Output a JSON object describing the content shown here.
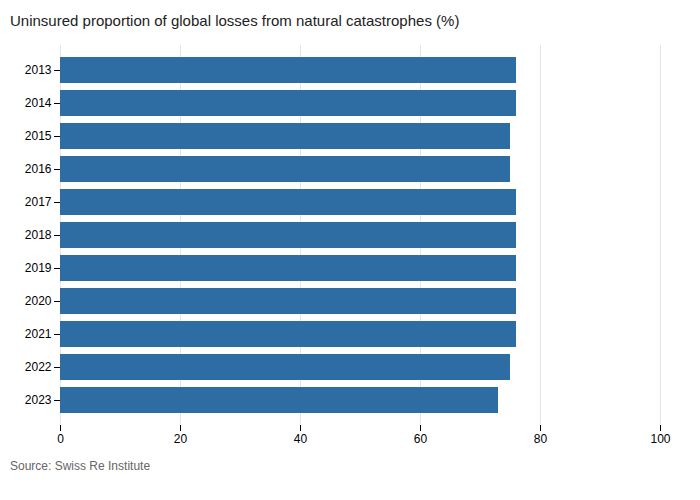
{
  "chart_data": {
    "type": "bar",
    "orientation": "horizontal",
    "title": "Uninsured proportion of global losses from natural catastrophes (%)",
    "categories": [
      "2013",
      "2014",
      "2015",
      "2016",
      "2017",
      "2018",
      "2019",
      "2020",
      "2021",
      "2022",
      "2023"
    ],
    "values": [
      76,
      76,
      75,
      75,
      76,
      76,
      76,
      76,
      76,
      75,
      73
    ],
    "color": "#2e6da4",
    "xlim": [
      0,
      100
    ],
    "xticks": [
      0,
      20,
      40,
      60,
      80,
      100
    ],
    "grid": true,
    "annotations": [
      "Source: Swiss Re Institute"
    ]
  }
}
